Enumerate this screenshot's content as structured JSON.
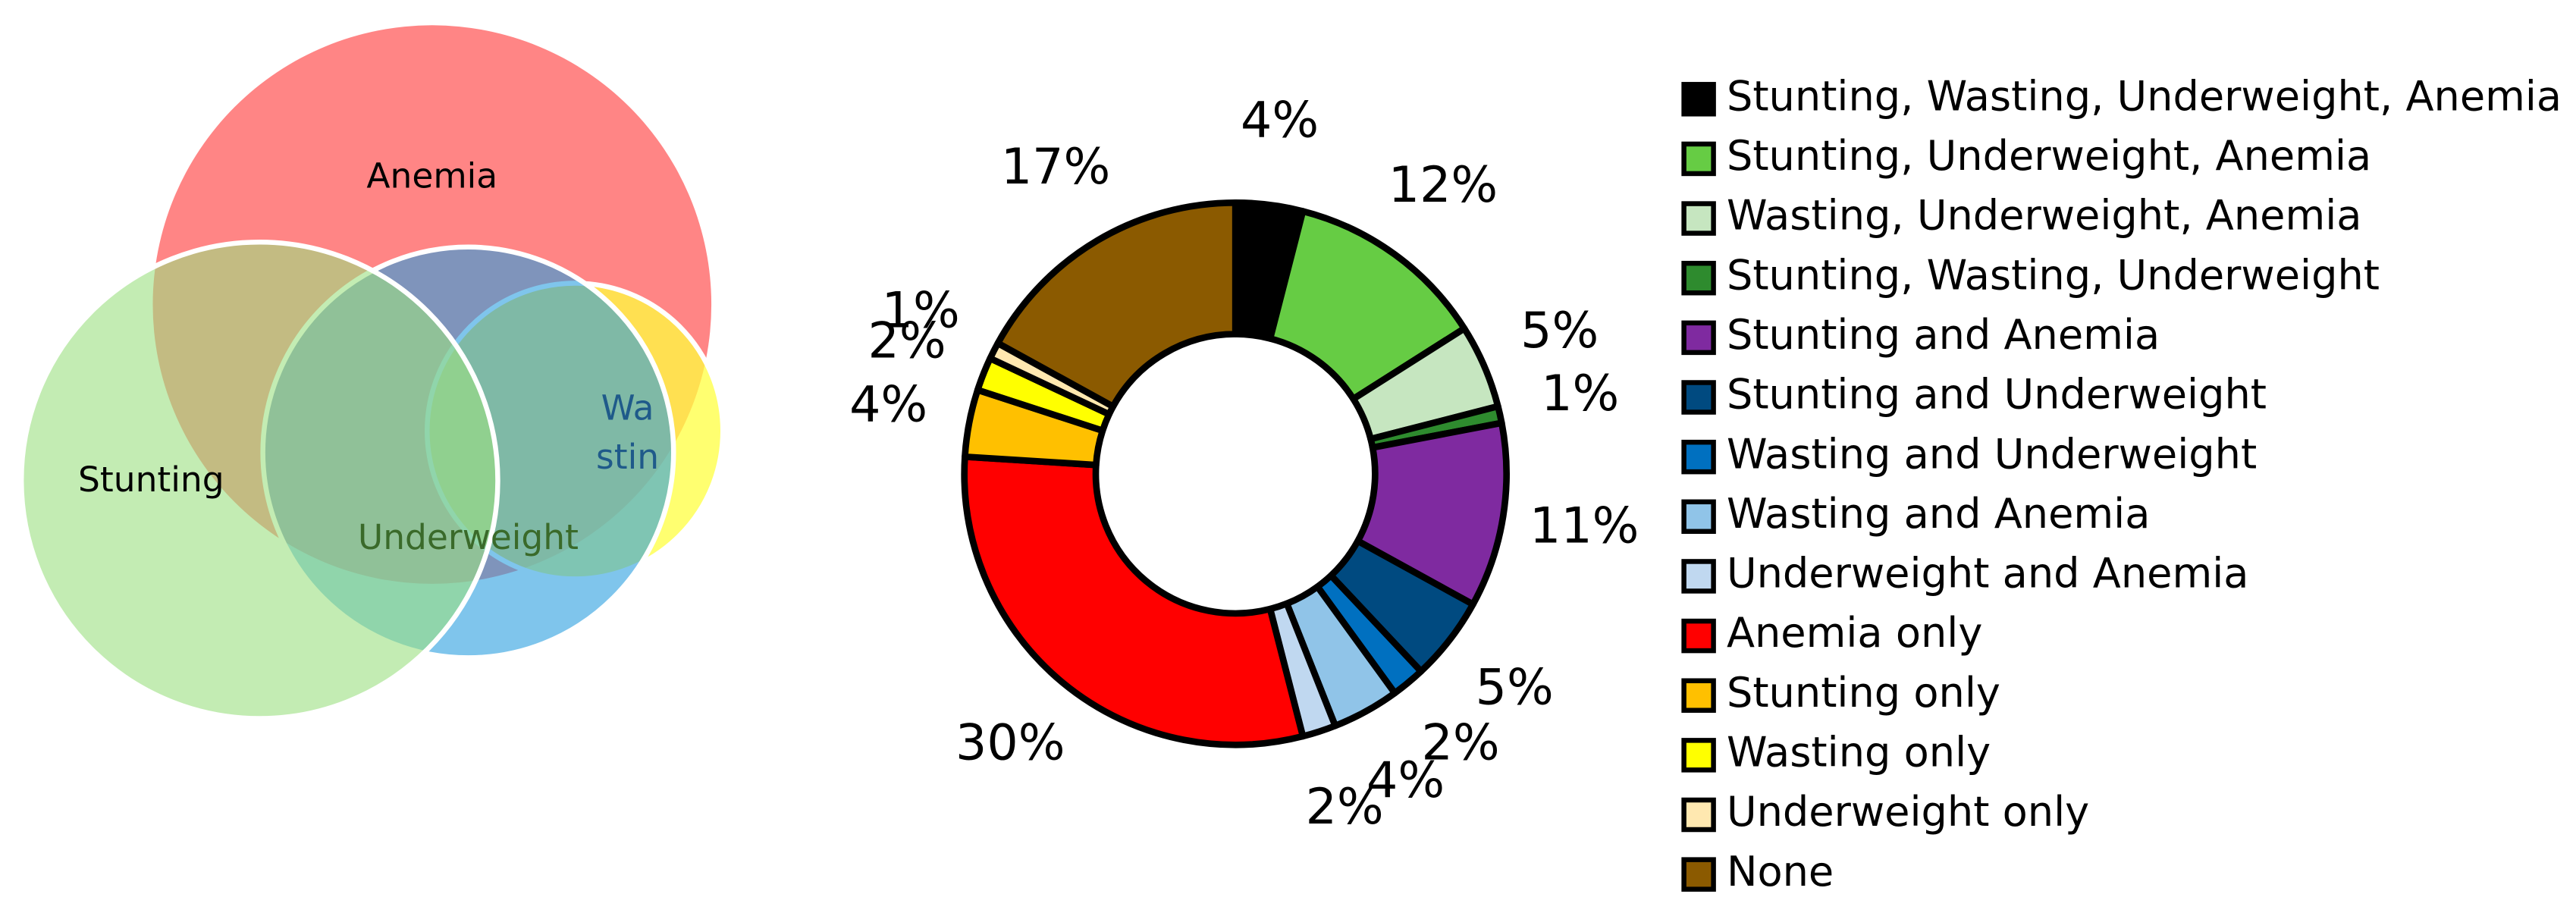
{
  "diagram": {
    "sets": [
      "Anemia",
      "Stunting",
      "Underweight",
      "Wasting"
    ]
  },
  "chart_data": {
    "type": "donut",
    "categories": [
      "Stunting, Wasting, Underweight, Anemia",
      "Stunting, Underweight, Anemia",
      "Wasting, Underweight, Anemia",
      "Stunting, Wasting, Underweight",
      "Stunting and Anemia",
      "Stunting and Underweight",
      "Wasting and Underweight",
      "Wasting and Anemia",
      "Underweight and Anemia",
      "Anemia only",
      "Stunting only",
      "Wasting only",
      "Underweight only",
      "None"
    ],
    "values": [
      4,
      12,
      5,
      1,
      11,
      5,
      2,
      4,
      2,
      30,
      4,
      2,
      1,
      17
    ],
    "value_labels": [
      "4%",
      "12%",
      "5%",
      "1%",
      "11%",
      "5%",
      "2%",
      "4%",
      "2%",
      "30%",
      "4%",
      "2%",
      "1%",
      "17%"
    ],
    "colors": [
      "#000000",
      "#66cc44",
      "#c6e6c0",
      "#2e8b2e",
      "#7f2aa0",
      "#004a80",
      "#0070c0",
      "#90c4e8",
      "#c0d8f0",
      "#ff0000",
      "#ffc000",
      "#ffff00",
      "#ffe8b0",
      "#8b5a00"
    ],
    "legend": "right"
  }
}
